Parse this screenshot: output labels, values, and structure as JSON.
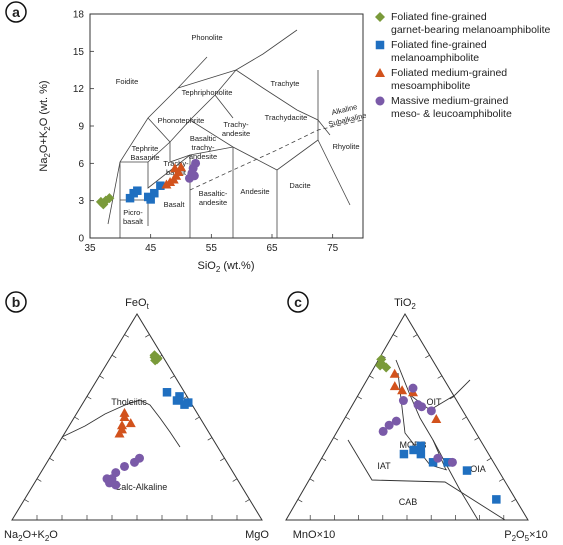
{
  "panels": [
    {
      "letter": "a"
    },
    {
      "letter": "b"
    },
    {
      "letter": "c"
    }
  ],
  "legend": [
    {
      "marker": "diamond",
      "color": "#7a9a3a",
      "lines": [
        "Foliated fine-grained",
        "garnet-bearing melanoamphibolite"
      ]
    },
    {
      "marker": "square",
      "color": "#1f6fc0",
      "lines": [
        "Foliated fine-grained",
        "melanoamphibolite"
      ]
    },
    {
      "marker": "triangle",
      "color": "#d2521c",
      "lines": [
        "Foliated medium-grained",
        "mesoamphibolite"
      ]
    },
    {
      "marker": "circle",
      "color": "#7a5aa8",
      "lines": [
        "Massive medium-grained",
        "meso- & leucoamphibolite"
      ]
    }
  ],
  "tas": {
    "xlabel": "SiO2 (wt.%)",
    "ylabel": "Na2O+K2O (wt. %)",
    "fields": {
      "phonolite": "Phonolite",
      "foidite": "Foidite",
      "tephriphonolite": "Tephriphonolite",
      "trachyte": "Trachyte",
      "phonotephrite": "Phonotephrite",
      "trachyandesite_1": "Trachy-",
      "trachyandesite_2": "andesite",
      "trachydacite": "Trachydacite",
      "alkaline": "Alkaline",
      "subalkaline": "Subalkaline",
      "basanite_1": "Tephrite",
      "basanite_2": "Basanite",
      "bta_1": "Basaltic",
      "bta_2": "trachy-",
      "bta_3": "andesite",
      "trachybasalt_1": "Trachy-",
      "trachybasalt_2": "basalt",
      "rhyolite": "Rhyolite",
      "picro_1": "Picro-",
      "picro_2": "basalt",
      "basalt": "Basalt",
      "ba_1": "Basaltic-",
      "ba_2": "andesite",
      "andesite": "Andesite",
      "dacite": "Dacite"
    }
  },
  "afm": {
    "apex_top": "FeOt",
    "apex_left": "Na2O+K2O",
    "apex_right": "MgO",
    "field_upper": "Tholeiitic",
    "field_lower": "Calc-Alkaline"
  },
  "mnp": {
    "apex_top": "TiO2",
    "apex_left": "MnO×10",
    "apex_right": "P2O5×10",
    "fields": {
      "oit": "OIT",
      "morb": "MORB",
      "iat": "IAT",
      "oia": "OIA",
      "cab": "CAB"
    }
  },
  "chart_data": [
    {
      "type": "scatter",
      "panel": "a",
      "xlabel": "SiO2 (wt.%)",
      "ylabel": "Na2O+K2O (wt. %)",
      "xlim": [
        35,
        80
      ],
      "ylim": [
        0,
        18
      ],
      "xticks": [
        35,
        45,
        55,
        65,
        75
      ],
      "yticks": [
        0,
        3,
        6,
        9,
        12,
        15,
        18
      ],
      "series": [
        {
          "name": "Foliated fine-grained garnet-bearing melanoamphibolite",
          "x": [
            36.8,
            37.2,
            37.6,
            38.2
          ],
          "y": [
            2.9,
            2.7,
            3.0,
            3.2
          ]
        },
        {
          "name": "Foliated fine-grained melanoamphibolite",
          "x": [
            41.6,
            42.2,
            42.8,
            44.6,
            45.0,
            45.6,
            46.6
          ],
          "y": [
            3.2,
            3.6,
            3.8,
            3.3,
            3.1,
            3.6,
            4.2
          ]
        },
        {
          "name": "Foliated medium-grained mesoamphibolite",
          "x": [
            47.6,
            48.2,
            48.8,
            49.2,
            49.6,
            50.0,
            49.0
          ],
          "y": [
            4.3,
            4.5,
            4.7,
            5.0,
            5.3,
            5.7,
            5.6
          ]
        },
        {
          "name": "Massive medium-grained meso- & leucoamphibolite",
          "x": [
            51.4,
            51.8,
            52.2,
            52.0,
            52.4
          ],
          "y": [
            4.8,
            5.2,
            5.0,
            5.6,
            6.0
          ]
        }
      ]
    },
    {
      "type": "scatter",
      "panel": "b",
      "ternary": true,
      "components": [
        "FeOt",
        "Na2O+K2O",
        "MgO"
      ],
      "series": [
        {
          "name": "Foliated fine-grained garnet-bearing melanoamphibolite",
          "points": [
            [
              0.8,
              0.03
            ],
            [
              0.79,
              0.035
            ],
            [
              0.78,
              0.03
            ],
            [
              0.775,
              0.04
            ],
            [
              0.785,
              0.025
            ]
          ]
        },
        {
          "name": "Foliated fine-grained melanoamphibolite",
          "points": [
            [
              0.62,
              0.07
            ],
            [
              0.6,
              0.03
            ],
            [
              0.58,
              0.05
            ],
            [
              0.57,
              0.01
            ],
            [
              0.56,
              0.03
            ]
          ]
        },
        {
          "name": "Foliated medium-grained mesoamphibolite",
          "points": [
            [
              0.52,
              0.29
            ],
            [
              0.5,
              0.3
            ],
            [
              0.47,
              0.29
            ],
            [
              0.46,
              0.33
            ],
            [
              0.44,
              0.34
            ],
            [
              0.42,
              0.36
            ]
          ]
        },
        {
          "name": "Massive medium-grained meso- & leucoamphibolite",
          "points": [
            [
              0.3,
              0.34
            ],
            [
              0.28,
              0.37
            ],
            [
              0.26,
              0.42
            ],
            [
              0.23,
              0.47
            ],
            [
              0.2,
              0.5
            ],
            [
              0.2,
              0.52
            ],
            [
              0.18,
              0.52
            ],
            [
              0.17,
              0.5
            ]
          ]
        }
      ]
    },
    {
      "type": "scatter",
      "panel": "c",
      "ternary": true,
      "components": [
        "TiO2",
        "MnO×10",
        "P2O5×10"
      ],
      "series": [
        {
          "name": "Foliated fine-grained garnet-bearing melanoamphibolite",
          "points": [
            [
              0.78,
              0.21
            ],
            [
              0.76,
              0.22
            ],
            [
              0.75,
              0.23
            ],
            [
              0.74,
              0.21
            ]
          ]
        },
        {
          "name": "Foliated fine-grained melanoamphibolite",
          "points": [
            [
              0.36,
              0.26
            ],
            [
              0.34,
              0.3
            ],
            [
              0.32,
              0.35
            ],
            [
              0.32,
              0.28
            ],
            [
              0.28,
              0.25
            ],
            [
              0.28,
              0.19
            ],
            [
              0.24,
              0.13
            ],
            [
              0.1,
              0.08
            ]
          ]
        },
        {
          "name": "Foliated medium-grained mesoamphibolite",
          "points": [
            [
              0.71,
              0.19
            ],
            [
              0.65,
              0.22
            ],
            [
              0.63,
              0.2
            ],
            [
              0.62,
              0.16
            ],
            [
              0.49,
              0.13
            ]
          ]
        },
        {
          "name": "Massive medium-grained meso- & leucoamphibolite",
          "points": [
            [
              0.64,
              0.15
            ],
            [
              0.58,
              0.22
            ],
            [
              0.56,
              0.17
            ],
            [
              0.55,
              0.16
            ],
            [
              0.53,
              0.13
            ],
            [
              0.48,
              0.3
            ],
            [
              0.46,
              0.34
            ],
            [
              0.43,
              0.38
            ],
            [
              0.3,
              0.22
            ],
            [
              0.28,
              0.17
            ]
          ]
        }
      ]
    }
  ]
}
